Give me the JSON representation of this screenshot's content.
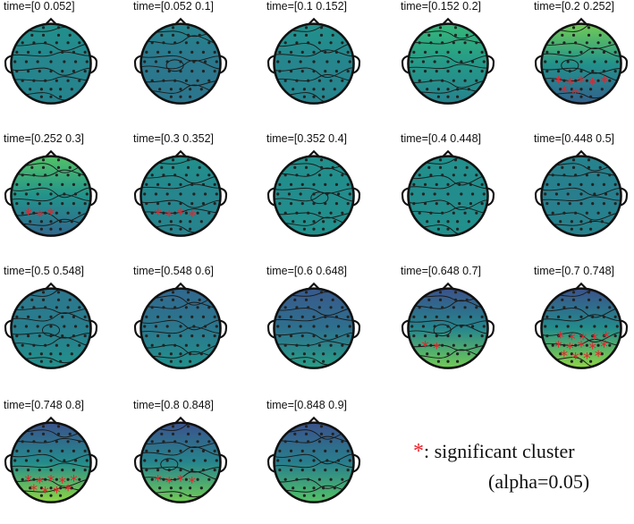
{
  "figure": {
    "panels": [
      {
        "title": "time=[0 0.052]",
        "top_hue": 0.45,
        "bottom_hue": 0.4,
        "star_count": 0
      },
      {
        "title": "time=[0.052 0.1]",
        "top_hue": 0.4,
        "bottom_hue": 0.35,
        "star_count": 0
      },
      {
        "title": "time=[0.1 0.152]",
        "top_hue": 0.45,
        "bottom_hue": 0.4,
        "star_count": 0
      },
      {
        "title": "time=[0.152 0.2]",
        "top_hue": 0.6,
        "bottom_hue": 0.4,
        "star_count": 0
      },
      {
        "title": "time=[0.2 0.252]",
        "top_hue": 0.7,
        "bottom_hue": 0.25,
        "star_count": 7
      },
      {
        "title": "time=[0.252 0.3]",
        "top_hue": 0.65,
        "bottom_hue": 0.3,
        "star_count": 3
      },
      {
        "title": "time=[0.3 0.352]",
        "top_hue": 0.45,
        "bottom_hue": 0.4,
        "star_count": 4
      },
      {
        "title": "time=[0.352 0.4]",
        "top_hue": 0.45,
        "bottom_hue": 0.45,
        "star_count": 0
      },
      {
        "title": "time=[0.4 0.448]",
        "top_hue": 0.45,
        "bottom_hue": 0.45,
        "star_count": 0
      },
      {
        "title": "time=[0.448 0.5]",
        "top_hue": 0.4,
        "bottom_hue": 0.4,
        "star_count": 0
      },
      {
        "title": "time=[0.5 0.548]",
        "top_hue": 0.35,
        "bottom_hue": 0.45,
        "star_count": 0
      },
      {
        "title": "time=[0.548 0.6]",
        "top_hue": 0.3,
        "bottom_hue": 0.45,
        "star_count": 0
      },
      {
        "title": "time=[0.6 0.648]",
        "top_hue": 0.2,
        "bottom_hue": 0.5,
        "star_count": 0
      },
      {
        "title": "time=[0.648 0.7]",
        "top_hue": 0.15,
        "bottom_hue": 0.7,
        "star_count": 2
      },
      {
        "title": "time=[0.7 0.748]",
        "top_hue": 0.15,
        "bottom_hue": 0.75,
        "star_count": 14
      },
      {
        "title": "time=[0.748 0.8]",
        "top_hue": 0.15,
        "bottom_hue": 0.75,
        "star_count": 9
      },
      {
        "title": "time=[0.8 0.848]",
        "top_hue": 0.15,
        "bottom_hue": 0.7,
        "star_count": 4
      },
      {
        "title": "time=[0.848 0.9]",
        "top_hue": 0.15,
        "bottom_hue": 0.65,
        "star_count": 0
      }
    ],
    "legend": {
      "star": "*",
      "text": ": significant cluster",
      "alpha": "(alpha=0.05)"
    },
    "colors": {
      "star": "#e8222b",
      "outline": "#111111",
      "sensor": "#222222"
    }
  }
}
